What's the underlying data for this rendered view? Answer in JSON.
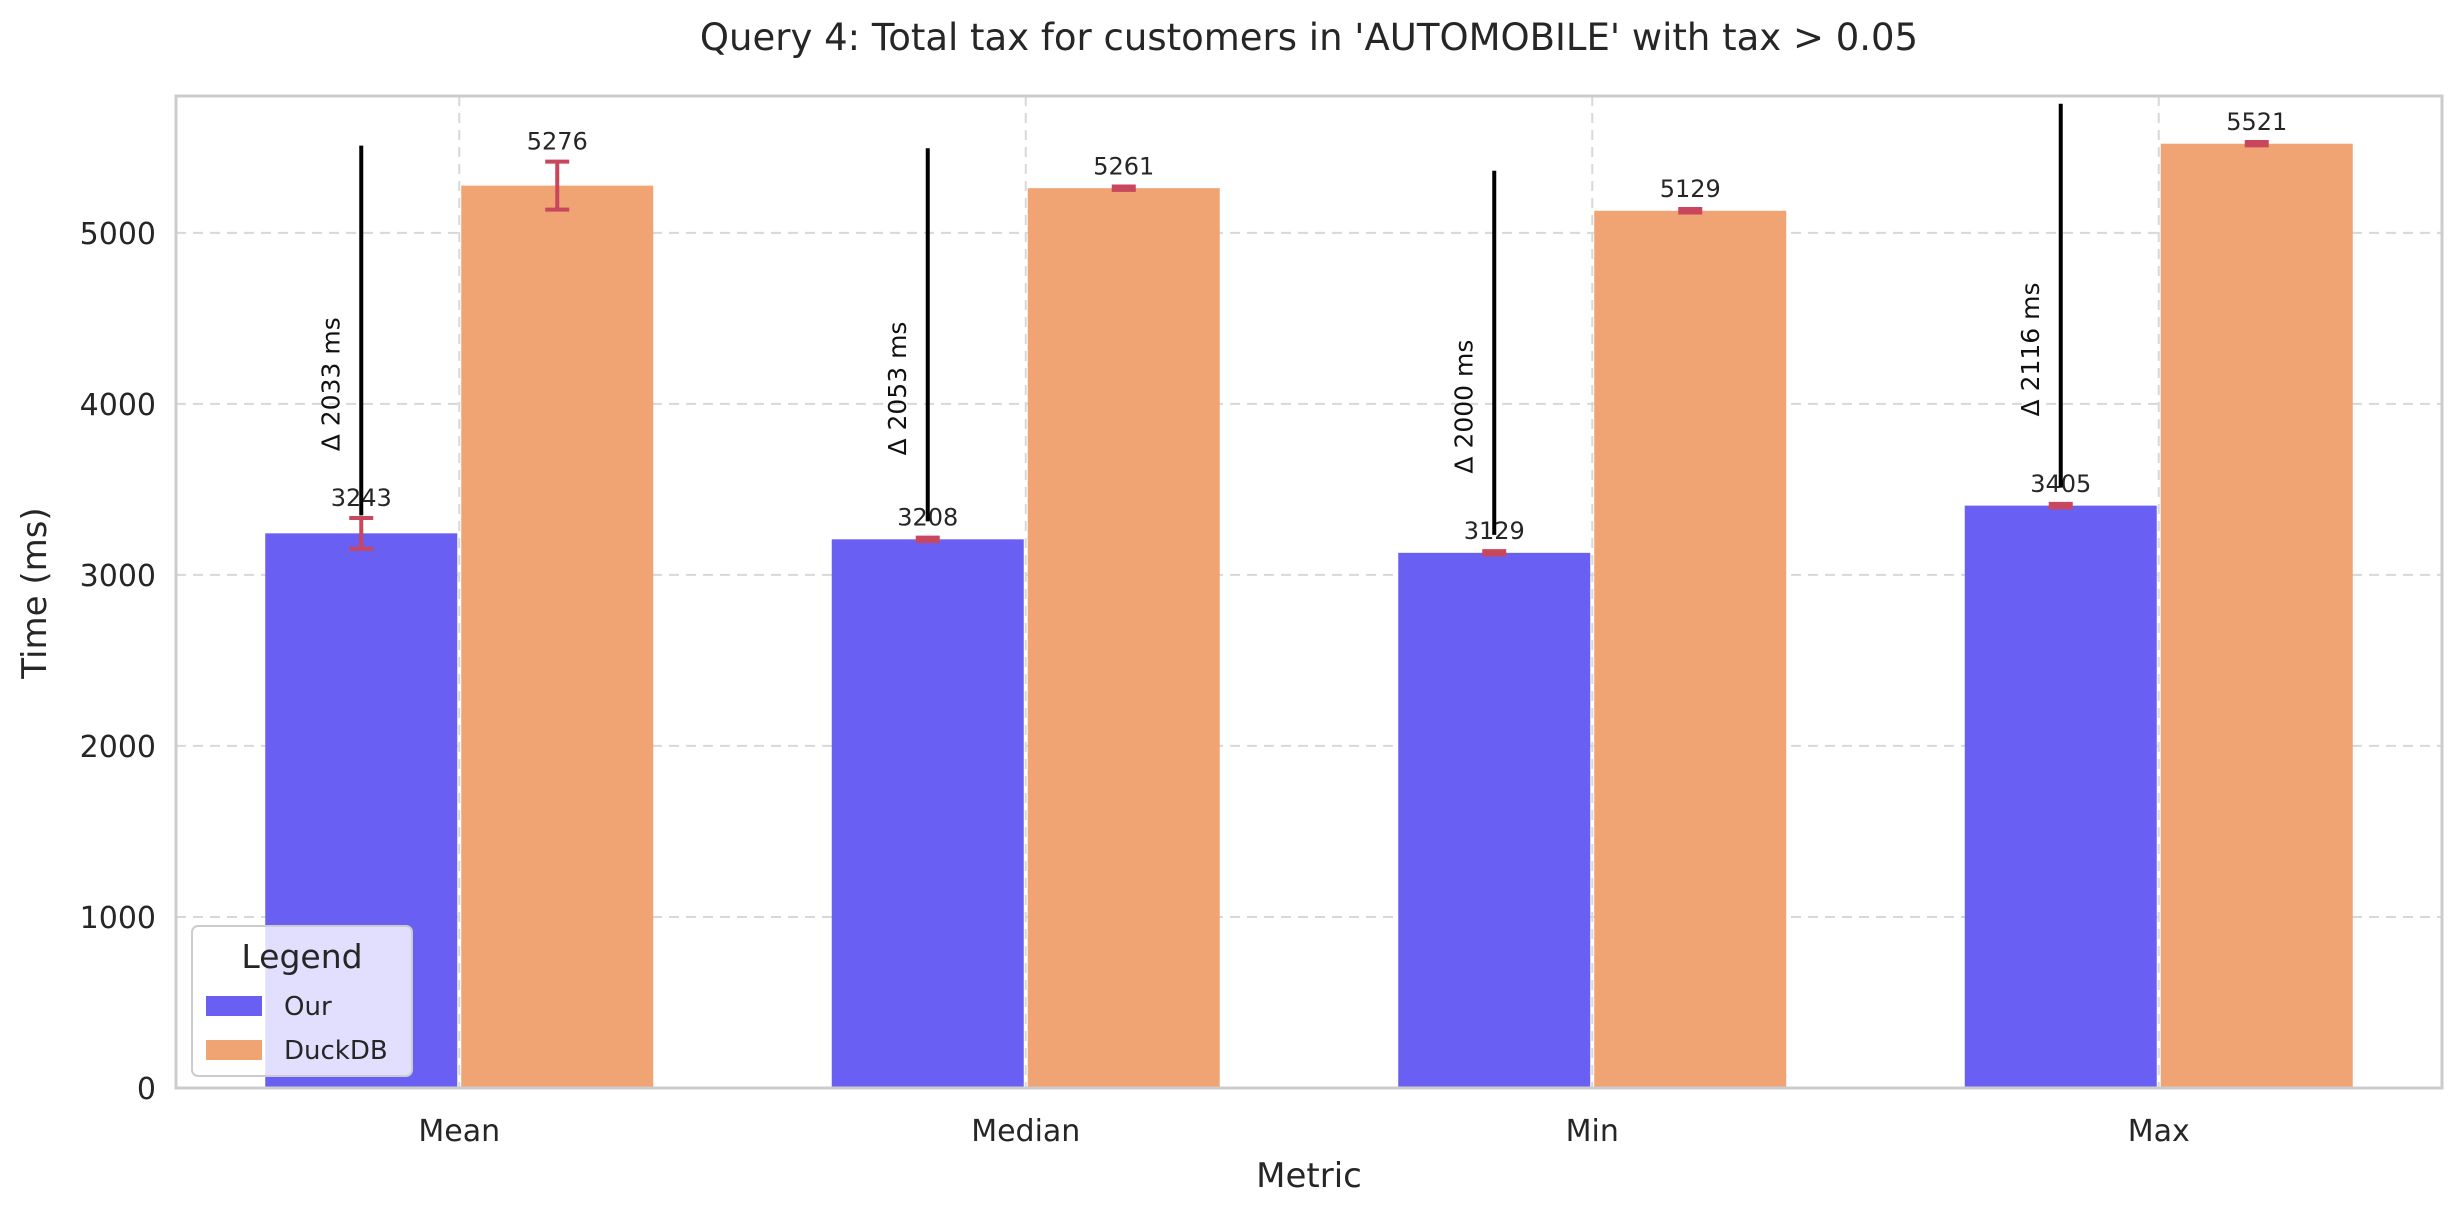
{
  "chart_data": {
    "type": "bar",
    "title": "Query 4: Total tax for customers in 'AUTOMOBILE' with tax > 0.05",
    "xlabel": "Metric",
    "ylabel": "Time (ms)",
    "categories": [
      "Mean",
      "Median",
      "Min",
      "Max"
    ],
    "ylim": [
      0,
      5800
    ],
    "yticks": [
      0,
      1000,
      2000,
      3000,
      4000,
      5000
    ],
    "grid": true,
    "series": [
      {
        "name": "Our",
        "color": "#6a5ff3",
        "values": [
          3243,
          3208,
          3129,
          3405
        ],
        "labels": [
          "3243",
          "3208",
          "3129",
          "3405"
        ],
        "error": [
          90,
          10,
          10,
          10
        ]
      },
      {
        "name": "DuckDB",
        "color": "#f0a373",
        "values": [
          5276,
          5261,
          5129,
          5521
        ],
        "labels": [
          "5276",
          "5261",
          "5129",
          "5521"
        ],
        "error": [
          140,
          10,
          10,
          10
        ]
      }
    ],
    "differences": [
      "Δ 2033 ms",
      "Δ 2053 ms",
      "Δ 2000 ms",
      "Δ 2116 ms"
    ],
    "error_color": "#c8475c",
    "legend": {
      "title": "Legend",
      "placement": "lower-left"
    }
  }
}
